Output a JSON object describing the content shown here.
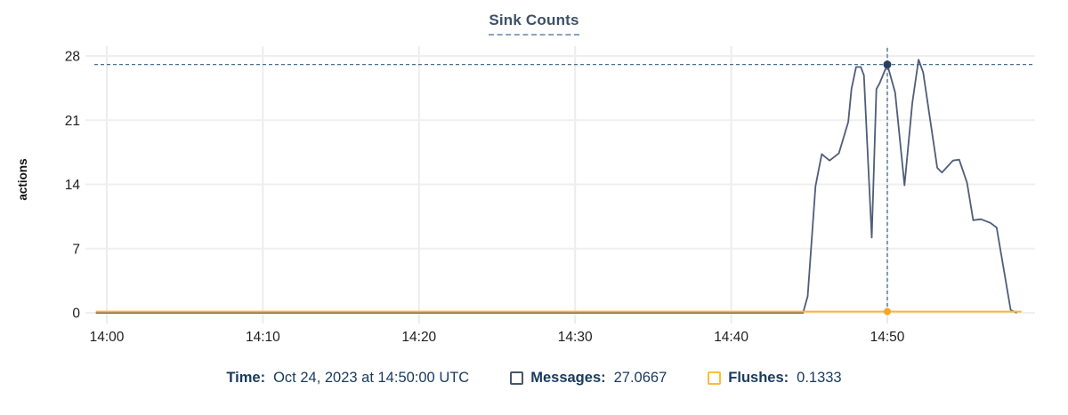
{
  "tooltip": {
    "time_label": "Time:",
    "time_value": "Oct 24, 2023 at 14:50:00 UTC",
    "series": [
      {
        "label": "Messages:",
        "value": "27.0667",
        "swatch_color": "#47566e"
      },
      {
        "label": "Flushes:",
        "value": "0.1333",
        "swatch_color": "#fcbd3a"
      }
    ]
  },
  "chart_data": {
    "type": "line",
    "title": "Sink Counts",
    "xlabel": "",
    "ylabel": "actions",
    "x_unit": "minutes after 14:00 UTC",
    "x_ticks": [
      {
        "t": 0,
        "label": "14:00"
      },
      {
        "t": 10,
        "label": "14:10"
      },
      {
        "t": 20,
        "label": "14:20"
      },
      {
        "t": 30,
        "label": "14:30"
      },
      {
        "t": 40,
        "label": "14:40"
      },
      {
        "t": 50,
        "label": "14:50"
      }
    ],
    "y_ticks": [
      0,
      7,
      14,
      21,
      28
    ],
    "ylim": [
      0,
      28
    ],
    "xlim": [
      -0.8,
      59.5
    ],
    "grid": true,
    "legend_position": "bottom",
    "series": [
      {
        "name": "Messages",
        "color": "#4e5d78",
        "width": 1.8,
        "points": [
          [
            -0.7,
            0
          ],
          [
            5,
            0
          ],
          [
            10,
            0
          ],
          [
            15,
            0
          ],
          [
            20,
            0
          ],
          [
            25,
            0
          ],
          [
            30,
            0
          ],
          [
            35,
            0
          ],
          [
            40,
            0
          ],
          [
            44.6,
            0
          ],
          [
            44.9,
            1.8
          ],
          [
            45.4,
            13.8
          ],
          [
            45.8,
            17.3
          ],
          [
            46.3,
            16.6
          ],
          [
            46.9,
            17.4
          ],
          [
            47.5,
            20.8
          ],
          [
            47.7,
            24.4
          ],
          [
            48.0,
            26.8
          ],
          [
            48.3,
            26.8
          ],
          [
            48.5,
            25.9
          ],
          [
            49.0,
            8.2
          ],
          [
            49.3,
            24.4
          ],
          [
            49.5,
            25.0
          ],
          [
            50.0,
            27.0667
          ],
          [
            50.5,
            24.0
          ],
          [
            51.1,
            13.9
          ],
          [
            51.6,
            22.9
          ],
          [
            52.0,
            27.6
          ],
          [
            52.3,
            26.2
          ],
          [
            53.2,
            15.8
          ],
          [
            53.5,
            15.3
          ],
          [
            54.2,
            16.6
          ],
          [
            54.6,
            16.7
          ],
          [
            55.1,
            14.2
          ],
          [
            55.5,
            10.1
          ],
          [
            56.0,
            10.2
          ],
          [
            56.6,
            9.8
          ],
          [
            57.0,
            9.3
          ],
          [
            57.9,
            0.3
          ],
          [
            58.3,
            0
          ]
        ]
      },
      {
        "name": "Flushes",
        "color": "#fbb731",
        "width": 2,
        "points": [
          [
            -0.7,
            0.1333
          ],
          [
            58.6,
            0.1333
          ]
        ]
      }
    ],
    "crosshair": {
      "t_minutes": 50,
      "color": "#4a7390",
      "messages_value": 27.0667,
      "flushes_value": 0.1333,
      "messages_marker_color": "#2c3e5d",
      "flushes_marker_color": "#f6a623"
    },
    "colors": {
      "grid_vertical": "#ececec",
      "grid_horizontal": "#efefef",
      "tick_text": "#1e1e1e",
      "axis_title_text": "#111111"
    }
  }
}
